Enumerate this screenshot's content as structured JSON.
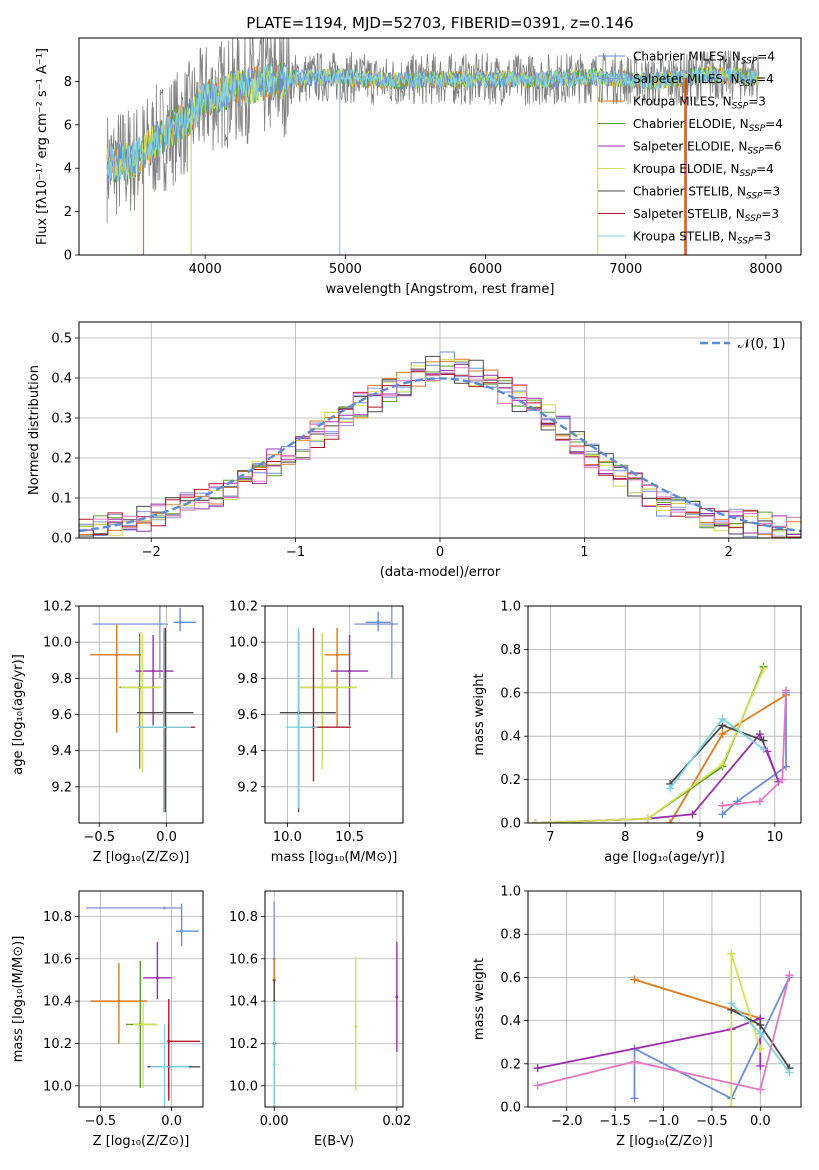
{
  "title": "PLATE=1194, MJD=52703, FIBERID=0391, z=0.146",
  "colors": {
    "Chabrier MILES": "#6a8fd8",
    "Salpeter MILES": "#8a9ad8",
    "Kroupa MILES": "#e07b1c",
    "Chabrier ELODIE": "#5aa02c",
    "Salpeter ELODIE": "#9b2fae",
    "Kroupa ELODIE": "#d4e157",
    "Chabrier STELIB": "#4a4a4a",
    "Salpeter STELIB": "#b2182b",
    "Kroupa STELIB": "#7fd3e0",
    "data": "#808080",
    "normal": "#5b8bd4",
    "pink": "#e377c2"
  },
  "chart_data": [
    {
      "id": "spectrum",
      "type": "line",
      "title": "PLATE=1194, MJD=52703, FIBERID=0391, z=0.146",
      "xlabel": "wavelength [Angstrom, rest frame]",
      "ylabel": "Flux [fλ10⁻¹⁷ erg cm⁻² s⁻¹ A⁻¹]",
      "xlim": [
        3100,
        8250
      ],
      "ylim": [
        0,
        10
      ],
      "xticks": [
        "4000",
        "5000",
        "6000",
        "7000",
        "8000"
      ],
      "yticks": [
        "0",
        "2",
        "4",
        "6",
        "8"
      ],
      "legend_position": "top-right",
      "continuum": {
        "x": [
          3300,
          3500,
          3700,
          3900,
          4000,
          4200,
          4400,
          4600,
          4800,
          5000,
          5300,
          5600,
          6000,
          6400,
          6800,
          7200,
          7600,
          7950
        ],
        "y": [
          4.1,
          4.4,
          5.5,
          6.4,
          7.2,
          7.6,
          7.9,
          8.1,
          8.2,
          8.2,
          8.0,
          8.1,
          8.1,
          8.1,
          8.2,
          8.0,
          8.3,
          8.2
        ]
      },
      "legend": [
        "Chabrier MILES, N_SSP=4",
        "Salpeter MILES, N_SSP=4",
        "Kroupa MILES, N_SSP=3",
        "Chabrier ELODIE, N_SSP=4",
        "Salpeter ELODIE, N_SSP=6",
        "Kroupa ELODIE, N_SSP=4",
        "Chabrier STELIB, N_SSP=3",
        "Salpeter STELIB, N_SSP=3",
        "Kroupa STELIB, N_SSP=3"
      ]
    },
    {
      "id": "residuals",
      "type": "line",
      "xlabel": "(data-model)/error",
      "ylabel": "Normed distribution",
      "xlim": [
        -2.5,
        2.5
      ],
      "ylim": [
        0,
        0.54
      ],
      "xticks": [
        "−2",
        "−1",
        "0",
        "1",
        "2"
      ],
      "yticks": [
        "0.0",
        "0.1",
        "0.2",
        "0.3",
        "0.4",
        "0.5"
      ],
      "legend": [
        "𝒩(0, 1)"
      ],
      "series_note": "nine step histograms, one per model",
      "bin_edges_start": -2.5,
      "bin_width": 0.1,
      "hist_base": [
        0.02,
        0.025,
        0.03,
        0.04,
        0.05,
        0.06,
        0.07,
        0.085,
        0.1,
        0.11,
        0.13,
        0.15,
        0.17,
        0.19,
        0.21,
        0.23,
        0.26,
        0.28,
        0.31,
        0.33,
        0.35,
        0.37,
        0.39,
        0.41,
        0.42,
        0.43,
        0.42,
        0.41,
        0.39,
        0.37,
        0.35,
        0.33,
        0.3,
        0.27,
        0.24,
        0.21,
        0.18,
        0.16,
        0.13,
        0.11,
        0.09,
        0.075,
        0.06,
        0.05,
        0.045,
        0.04,
        0.035,
        0.03,
        0.025,
        0.02
      ]
    },
    {
      "id": "age-vs-Z",
      "type": "scatter",
      "xlabel": "Z [log₁₀(Z/Z⊙)]",
      "ylabel": "age  [log₁₀(age/yr)]",
      "xlim": [
        -0.65,
        0.27
      ],
      "ylim": [
        9.0,
        10.2
      ],
      "xticks": [
        "−0.5",
        "0.0"
      ],
      "yticks": [
        "9.2",
        "9.4",
        "9.6",
        "9.8",
        "10.0",
        "10.2"
      ],
      "points": [
        {
          "model": "Chabrier MILES",
          "x": 0.1,
          "y": 10.11,
          "xerr": [
            0.05,
            0.12
          ],
          "yerr": [
            0.05,
            0.08
          ]
        },
        {
          "model": "Salpeter MILES",
          "x": -0.05,
          "y": 10.1,
          "xerr": [
            0.5,
            0.06
          ],
          "yerr": [
            0.3,
            0.1
          ]
        },
        {
          "model": "Kroupa MILES",
          "x": -0.37,
          "y": 9.93,
          "xerr": [
            0.2,
            0.18
          ],
          "yerr": [
            0.43,
            0.17
          ]
        },
        {
          "model": "Chabrier ELODIE",
          "x": -0.2,
          "y": 9.75,
          "xerr": [
            0.15,
            0.15
          ],
          "yerr": [
            0.45,
            0.3
          ]
        },
        {
          "model": "Salpeter ELODIE",
          "x": -0.1,
          "y": 9.84,
          "xerr": [
            0.13,
            0.15
          ],
          "yerr": [
            0.3,
            0.2
          ]
        },
        {
          "model": "Kroupa ELODIE",
          "x": -0.18,
          "y": 9.75,
          "xerr": [
            0.16,
            0.14
          ],
          "yerr": [
            0.47,
            0.3
          ]
        },
        {
          "model": "Chabrier STELIB",
          "x": -0.02,
          "y": 9.61,
          "xerr": [
            0.2,
            0.22
          ],
          "yerr": [
            0.55,
            0.45
          ]
        },
        {
          "model": "Salpeter STELIB",
          "x": -0.01,
          "y": 9.53,
          "xerr": [
            0.18,
            0.22
          ],
          "yerr": [
            0.47,
            0.55
          ]
        },
        {
          "model": "Kroupa STELIB",
          "x": -0.02,
          "y": 9.53,
          "xerr": [
            0.2,
            0.2
          ],
          "yerr": [
            0.47,
            0.55
          ]
        }
      ]
    },
    {
      "id": "age-vs-mass",
      "type": "scatter",
      "xlabel": "mass [log₁₀(M/M⊙)]",
      "ylabel": "",
      "xlim": [
        9.82,
        10.93
      ],
      "ylim": [
        9.0,
        10.2
      ],
      "xticks": [
        "10.0",
        "10.5"
      ],
      "yticks": [
        "9.2",
        "9.4",
        "9.6",
        "9.8",
        "10.0",
        "10.2"
      ],
      "points": [
        {
          "model": "Chabrier MILES",
          "x": 10.73,
          "y": 10.11,
          "xerr": [
            0.1,
            0.1
          ],
          "yerr": [
            0.05,
            0.06
          ]
        },
        {
          "model": "Salpeter MILES",
          "x": 10.84,
          "y": 10.1,
          "xerr": [
            0.3,
            0.05
          ],
          "yerr": [
            0.3,
            0.1
          ]
        },
        {
          "model": "Kroupa MILES",
          "x": 10.4,
          "y": 9.93,
          "xerr": [
            0.1,
            0.1
          ],
          "yerr": [
            0.4,
            0.15
          ]
        },
        {
          "model": "Chabrier ELODIE",
          "x": 10.28,
          "y": 9.75,
          "xerr": [
            0.18,
            0.28
          ],
          "yerr": [
            0.4,
            0.3
          ]
        },
        {
          "model": "Salpeter ELODIE",
          "x": 10.5,
          "y": 9.84,
          "xerr": [
            0.15,
            0.15
          ],
          "yerr": [
            0.3,
            0.2
          ]
        },
        {
          "model": "Kroupa ELODIE",
          "x": 10.28,
          "y": 9.75,
          "xerr": [
            0.18,
            0.28
          ],
          "yerr": [
            0.45,
            0.3
          ]
        },
        {
          "model": "Chabrier STELIB",
          "x": 10.09,
          "y": 9.61,
          "xerr": [
            0.15,
            0.3
          ],
          "yerr": [
            0.55,
            0.45
          ]
        },
        {
          "model": "Salpeter STELIB",
          "x": 10.21,
          "y": 9.53,
          "xerr": [
            0.1,
            0.3
          ],
          "yerr": [
            0.3,
            0.55
          ]
        },
        {
          "model": "Kroupa STELIB",
          "x": 10.09,
          "y": 9.53,
          "xerr": [
            0.1,
            0.15
          ],
          "yerr": [
            0.45,
            0.55
          ]
        }
      ]
    },
    {
      "id": "massweight-vs-age",
      "type": "line",
      "xlabel": "age  [log₁₀(age/yr)]",
      "ylabel": "mass weight",
      "xlim": [
        6.7,
        10.35
      ],
      "ylim": [
        0,
        1
      ],
      "xticks": [
        "7",
        "8",
        "9",
        "10"
      ],
      "yticks": [
        "0.0",
        "0.2",
        "0.4",
        "0.6",
        "0.8",
        "1.0"
      ],
      "series": [
        {
          "name": "Chabrier MILES",
          "x": [
            9.3,
            9.5,
            10.15,
            10.15
          ],
          "y": [
            0.04,
            0.1,
            0.26,
            0.6
          ]
        },
        {
          "name": "Kroupa MILES",
          "x": [
            8.6,
            9.3,
            10.15
          ],
          "y": [
            0.0,
            0.41,
            0.59
          ]
        },
        {
          "name": "Chabrier ELODIE",
          "x": [
            6.8,
            8.3,
            9.3,
            9.85
          ],
          "y": [
            0.0,
            0.02,
            0.26,
            0.72
          ]
        },
        {
          "name": "Salpeter ELODIE",
          "x": [
            6.8,
            8.3,
            8.9,
            9.8,
            10.05,
            9.9
          ],
          "y": [
            0.0,
            0.02,
            0.04,
            0.41,
            0.19,
            0.33
          ]
        },
        {
          "name": "Kroupa ELODIE",
          "x": [
            6.8,
            8.3,
            9.3,
            9.85
          ],
          "y": [
            0.0,
            0.02,
            0.27,
            0.71
          ]
        },
        {
          "name": "Chabrier STELIB",
          "x": [
            8.6,
            9.3,
            9.85
          ],
          "y": [
            0.18,
            0.45,
            0.38
          ]
        },
        {
          "name": "Kroupa STELIB",
          "x": [
            8.6,
            9.3,
            9.85
          ],
          "y": [
            0.16,
            0.48,
            0.34
          ]
        },
        {
          "name": "pink",
          "x": [
            9.3,
            9.8,
            10.1,
            10.15
          ],
          "y": [
            0.08,
            0.1,
            0.2,
            0.61
          ]
        }
      ]
    },
    {
      "id": "mass-vs-Z",
      "type": "scatter",
      "xlabel": "Z [log₁₀(Z/Z⊙)]",
      "ylabel": "mass [log₁₀(M/M⊙)]",
      "xlim": [
        -0.65,
        0.22
      ],
      "ylim": [
        9.9,
        10.92
      ],
      "xticks": [
        "−0.5",
        "0.0"
      ],
      "yticks": [
        "10.0",
        "10.2",
        "10.4",
        "10.6",
        "10.8"
      ],
      "points": [
        {
          "model": "Chabrier MILES",
          "x": 0.07,
          "y": 10.73,
          "xerr": [
            0.04,
            0.12
          ],
          "yerr": [
            0.07,
            0.13
          ]
        },
        {
          "model": "Salpeter MILES",
          "x": -0.05,
          "y": 10.84,
          "xerr": [
            0.55,
            0.12
          ],
          "yerr": [
            0.0,
            0.0
          ]
        },
        {
          "model": "Kroupa MILES",
          "x": -0.37,
          "y": 10.4,
          "xerr": [
            0.2,
            0.2
          ],
          "yerr": [
            0.2,
            0.18
          ]
        },
        {
          "model": "Chabrier ELODIE",
          "x": -0.22,
          "y": 10.29,
          "xerr": [
            0.1,
            0.12
          ],
          "yerr": [
            0.3,
            0.3
          ]
        },
        {
          "model": "Salpeter ELODIE",
          "x": -0.1,
          "y": 10.51,
          "xerr": [
            0.1,
            0.1
          ],
          "yerr": [
            0.1,
            0.17
          ]
        },
        {
          "model": "Kroupa ELODIE",
          "x": -0.2,
          "y": 10.29,
          "xerr": [
            0.07,
            0.1
          ],
          "yerr": [
            0.3,
            0.1
          ]
        },
        {
          "model": "Chabrier STELIB",
          "x": -0.02,
          "y": 10.09,
          "xerr": [
            0.15,
            0.22
          ],
          "yerr": [
            0.1,
            0.2
          ]
        },
        {
          "model": "Salpeter STELIB",
          "x": -0.02,
          "y": 10.21,
          "xerr": [
            0.01,
            0.22
          ],
          "yerr": [
            0.28,
            0.2
          ]
        },
        {
          "model": "Kroupa STELIB",
          "x": -0.05,
          "y": 10.09,
          "xerr": [
            0.1,
            0.17
          ],
          "yerr": [
            0.2,
            0.2
          ]
        }
      ]
    },
    {
      "id": "mass-vs-EBV",
      "type": "scatter",
      "xlabel": "E(B-V)",
      "ylabel": "",
      "xlim": [
        -0.0015,
        0.021
      ],
      "ylim": [
        9.9,
        10.92
      ],
      "xticks": [
        "0.00",
        "0.02"
      ],
      "yticks": [
        "10.0",
        "10.2",
        "10.4",
        "10.6",
        "10.8"
      ],
      "points": [
        {
          "model": "Salpeter MILES",
          "x": 0.0,
          "y": 10.6,
          "yerr": [
            0.15,
            0.27
          ]
        },
        {
          "model": "Salpeter STELIB",
          "x": 0.0,
          "y": 10.5,
          "yerr": [
            0.1,
            0.1
          ]
        },
        {
          "model": "Kroupa MILES",
          "x": 0.0,
          "y": 10.4,
          "yerr": [
            0.3,
            0.2
          ]
        },
        {
          "model": "Chabrier STELIB",
          "x": 0.0,
          "y": 10.2,
          "yerr": [
            0.3,
            0.3
          ]
        },
        {
          "model": "Kroupa STELIB",
          "x": 0.0,
          "y": 10.1,
          "yerr": [
            0.2,
            0.3
          ]
        },
        {
          "model": "Kroupa ELODIE",
          "x": 0.0133,
          "y": 10.28,
          "yerr": [
            0.3,
            0.33
          ]
        },
        {
          "model": "Salpeter ELODIE",
          "x": 0.02,
          "y": 10.42,
          "yerr": [
            0.26,
            0.26
          ]
        }
      ]
    },
    {
      "id": "massweight-vs-Z",
      "type": "line",
      "xlabel": "Z [log₁₀(Z/Z⊙)]",
      "ylabel": "mass weight",
      "xlim": [
        -2.4,
        0.42
      ],
      "ylim": [
        0,
        1
      ],
      "xticks": [
        "−2.0",
        "−1.5",
        "−1.0",
        "−0.5",
        "0.0"
      ],
      "yticks": [
        "0.0",
        "0.2",
        "0.4",
        "0.6",
        "0.8",
        "1.0"
      ],
      "series": [
        {
          "name": "Chabrier MILES",
          "x": [
            -1.3,
            -1.3,
            -0.3,
            0.3
          ],
          "y": [
            0.04,
            0.27,
            0.04,
            0.6
          ]
        },
        {
          "name": "Kroupa MILES",
          "x": [
            -1.3,
            0.0
          ],
          "y": [
            0.59,
            0.41
          ]
        },
        {
          "name": "Salpeter ELODIE",
          "x": [
            -2.3,
            -0.3,
            0.0,
            0.0
          ],
          "y": [
            0.18,
            0.36,
            0.41,
            0.19
          ]
        },
        {
          "name": "Kroupa ELODIE",
          "x": [
            -0.3,
            -0.3,
            0.0
          ],
          "y": [
            0.0,
            0.71,
            0.27
          ]
        },
        {
          "name": "Chabrier STELIB",
          "x": [
            -0.3,
            0.0,
            0.3
          ],
          "y": [
            0.45,
            0.38,
            0.18
          ]
        },
        {
          "name": "Kroupa STELIB",
          "x": [
            -0.3,
            0.0,
            0.3
          ],
          "y": [
            0.48,
            0.34,
            0.16
          ]
        },
        {
          "name": "pink",
          "x": [
            -2.3,
            -1.3,
            0.0,
            0.3
          ],
          "y": [
            0.1,
            0.21,
            0.08,
            0.61
          ]
        }
      ]
    }
  ]
}
